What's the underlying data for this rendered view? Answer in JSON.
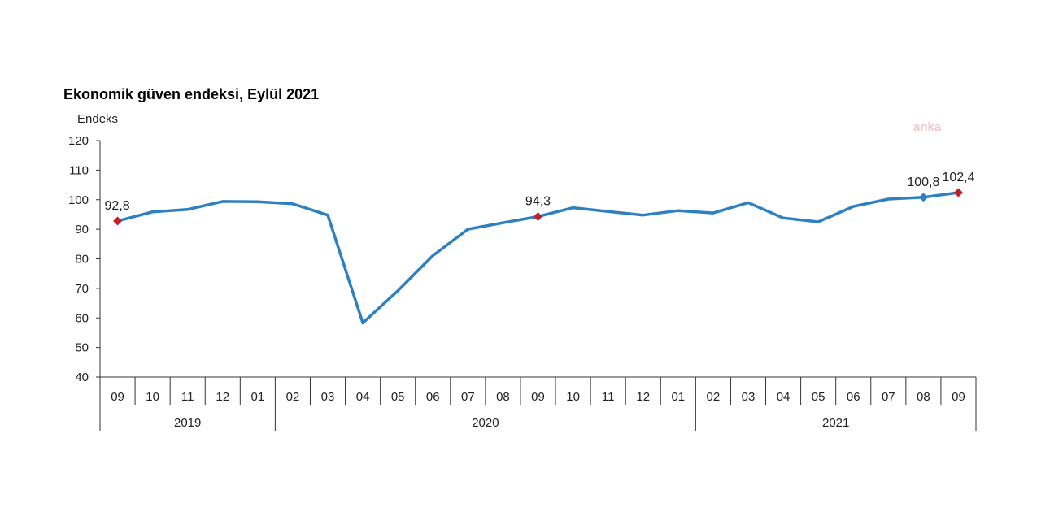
{
  "watermark": "anka",
  "colors": {
    "line": "#2f80c0",
    "highlight": "#c0222b",
    "axis": "#333333"
  },
  "chart_data": {
    "type": "line",
    "title": "Ekonomik güven endeksi, Eylül 2021",
    "ylabel": "Endeks",
    "ylim": [
      40,
      120
    ],
    "yticks": [
      40,
      50,
      60,
      70,
      80,
      90,
      100,
      110,
      120
    ],
    "categories": [
      "09",
      "10",
      "11",
      "12",
      "01",
      "02",
      "03",
      "04",
      "05",
      "06",
      "07",
      "08",
      "09",
      "10",
      "11",
      "12",
      "01",
      "02",
      "03",
      "04",
      "05",
      "06",
      "07",
      "08",
      "09"
    ],
    "years": [
      {
        "label": "2019",
        "start": 0,
        "end": 4
      },
      {
        "label": "2020",
        "start": 5,
        "end": 16
      },
      {
        "label": "2021",
        "start": 17,
        "end": 24
      }
    ],
    "series": [
      {
        "values": [
          92.8,
          95.9,
          96.7,
          99.4,
          99.3,
          98.6,
          94.8,
          58.3,
          69.2,
          81.1,
          90.0,
          92.2,
          94.3,
          97.3,
          96.0,
          94.8,
          96.3,
          95.5,
          99.0,
          93.8,
          92.5,
          97.7,
          100.2,
          100.8,
          102.4
        ]
      }
    ],
    "annotations": [
      {
        "index": 0,
        "text": "92,8",
        "color": "red"
      },
      {
        "index": 12,
        "text": "94,3",
        "color": "red"
      },
      {
        "index": 23,
        "text": "100,8",
        "color": "blue"
      },
      {
        "index": 24,
        "text": "102,4",
        "color": "red"
      }
    ],
    "grid": false,
    "legend": "none"
  }
}
